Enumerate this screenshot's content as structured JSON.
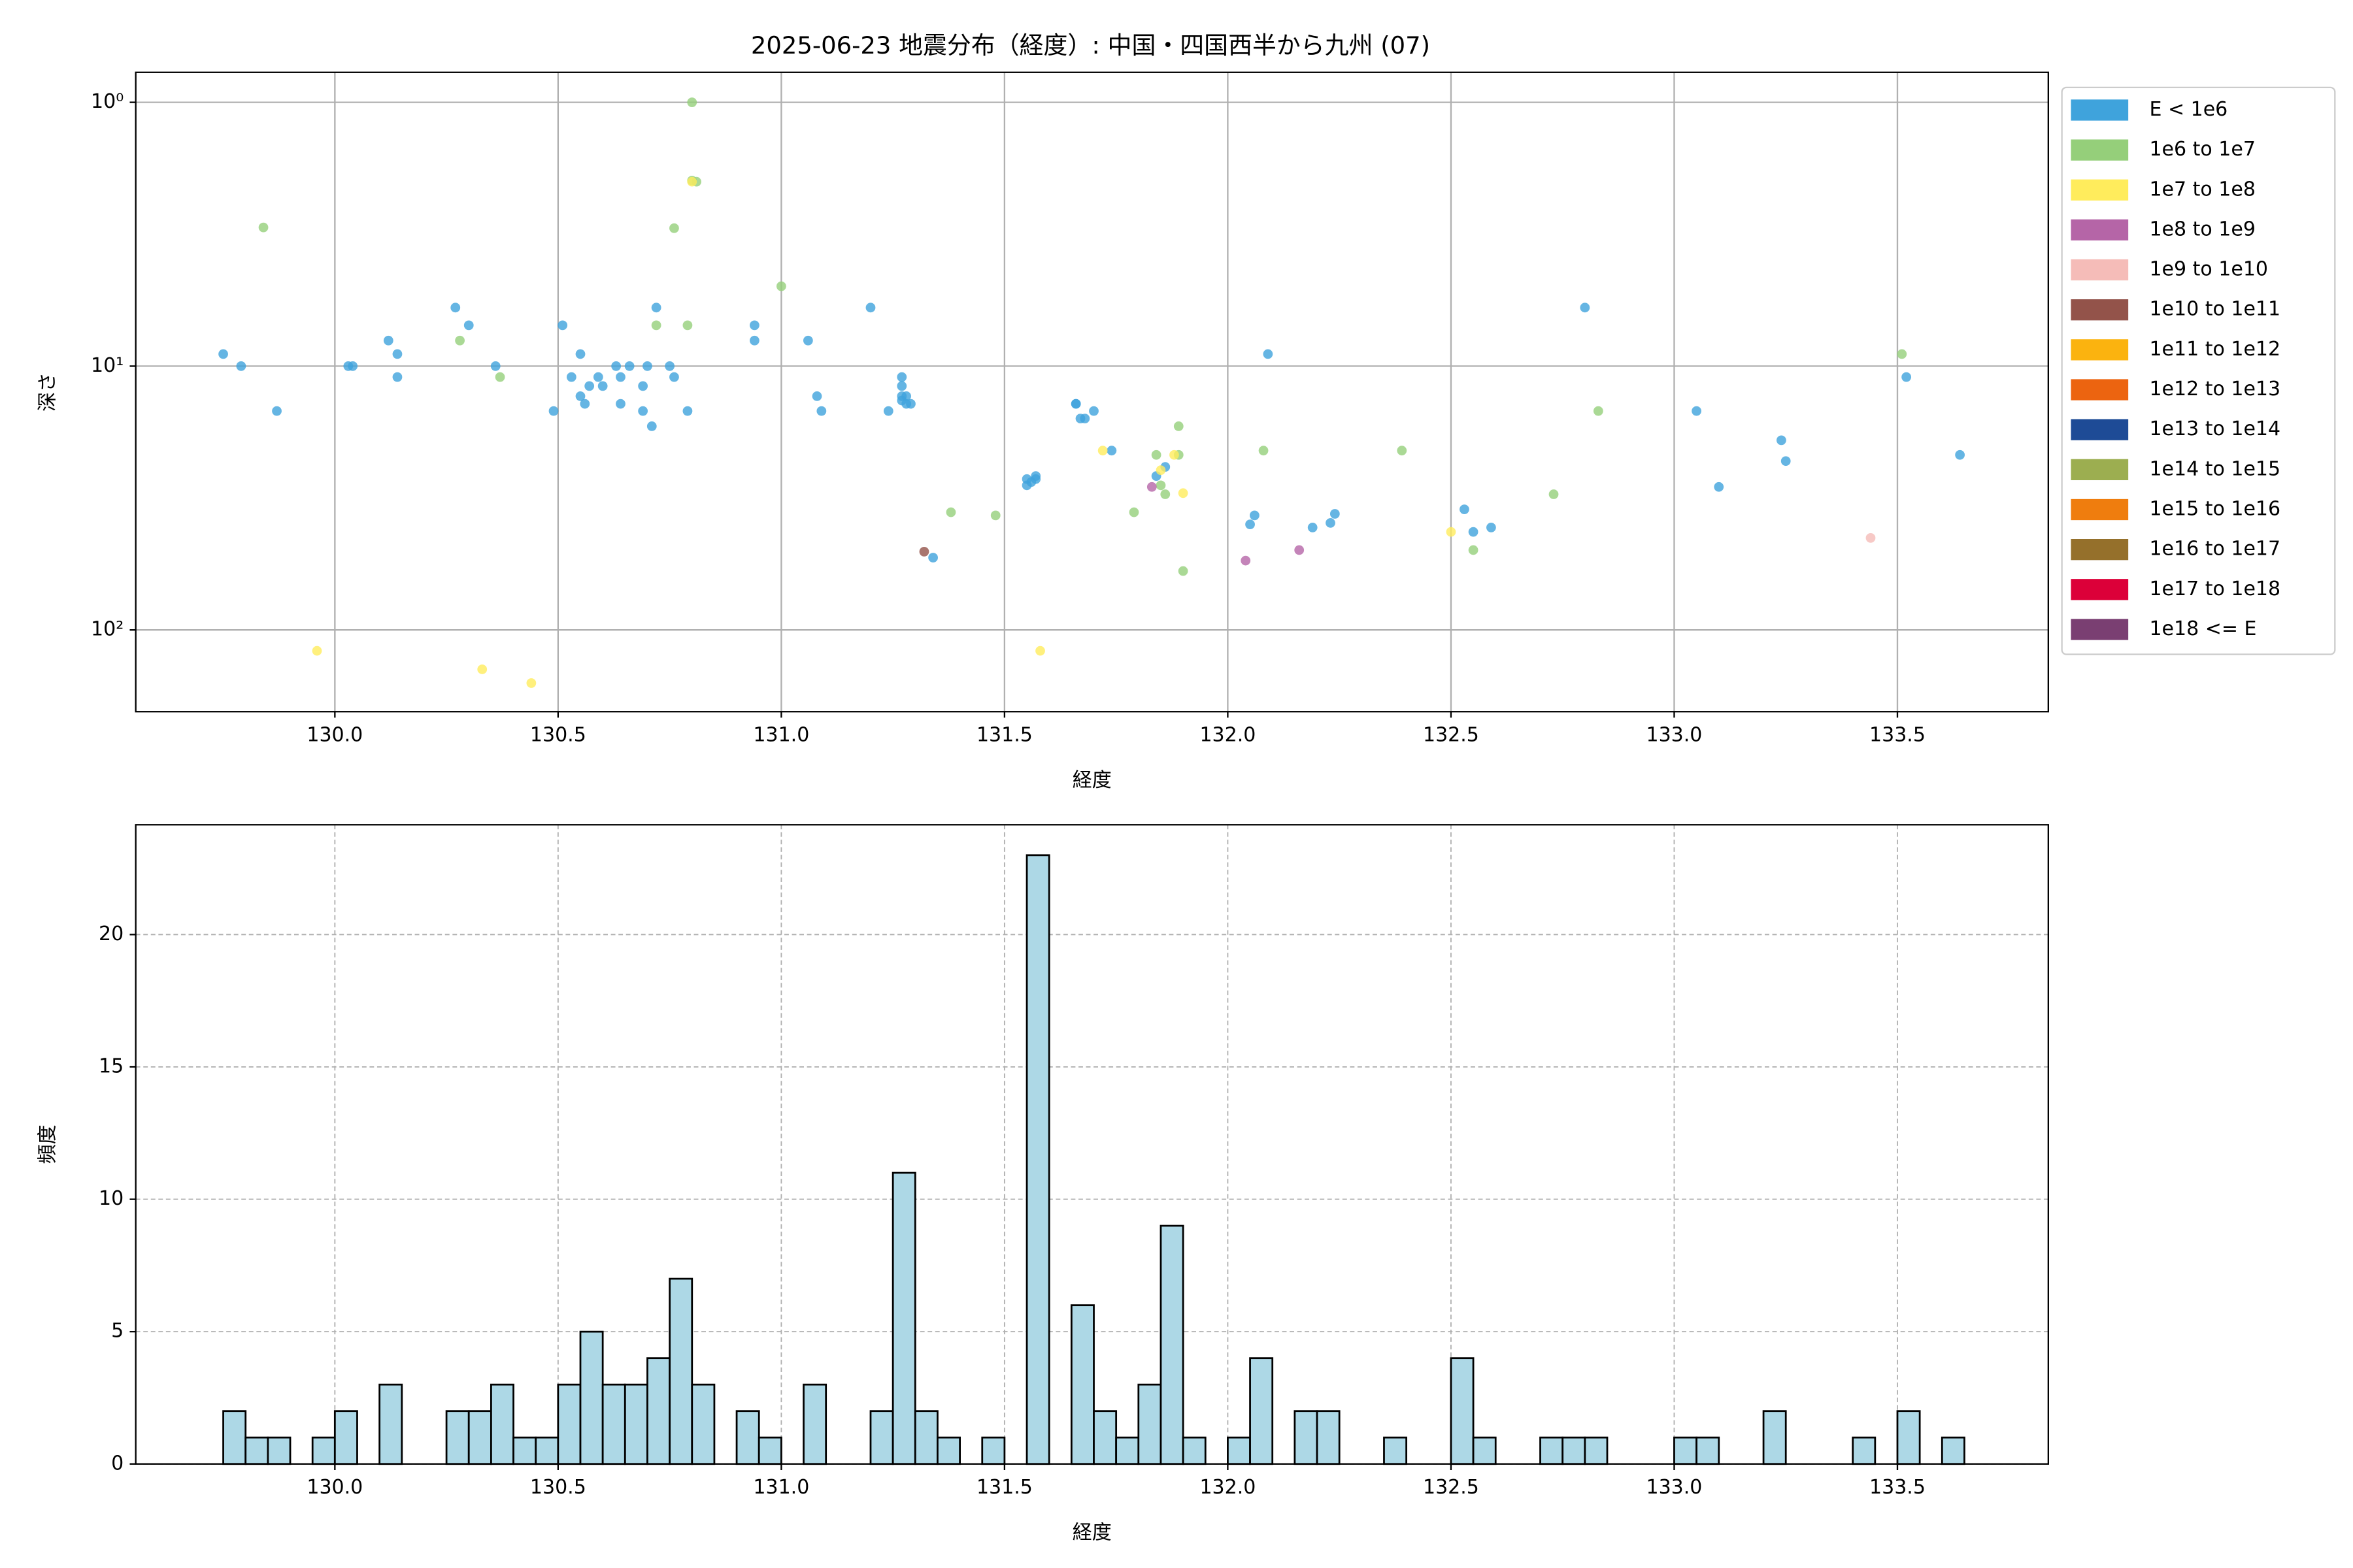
{
  "chart_data": [
    {
      "type": "scatter",
      "title": "2025-06-23 地震分布（経度）: 中国・四国西半から九州 (07)",
      "xlabel": "経度",
      "ylabel": "深さ",
      "xlim": [
        129.554,
        133.838
      ],
      "xticks": [
        {
          "value": 130,
          "label": "130.0"
        },
        {
          "value": 130.5,
          "label": "130.5"
        },
        {
          "value": 131,
          "label": "131.0"
        },
        {
          "value": 131.5,
          "label": "131.5"
        },
        {
          "value": 132,
          "label": "132.0"
        },
        {
          "value": 132.5,
          "label": "132.5"
        },
        {
          "value": 133,
          "label": "133.0"
        },
        {
          "value": 133.5,
          "label": "133.5"
        }
      ],
      "ylim": [
        0.77,
        204
      ],
      "y_log": true,
      "y_inverted": true,
      "yticks": [
        {
          "value": 1,
          "label": "10⁰"
        },
        {
          "value": 10,
          "label": "10¹"
        },
        {
          "value": 100,
          "label": "10²"
        }
      ],
      "grid": true,
      "legend": "outside upper right",
      "series": [
        {
          "name": "E < 1e6",
          "color": "#3fa3dc",
          "x": [
            129.75,
            129.79,
            129.87,
            130.03,
            130.04,
            130.12,
            130.14,
            130.14,
            130.27,
            130.3,
            130.36,
            130.49,
            130.51,
            130.53,
            130.55,
            130.55,
            130.56,
            130.57,
            130.59,
            130.6,
            130.63,
            130.64,
            130.64,
            130.66,
            130.69,
            130.69,
            130.7,
            130.71,
            130.72,
            130.75,
            130.76,
            130.79,
            130.94,
            130.94,
            131.06,
            131.08,
            131.09,
            131.2,
            131.24,
            131.27,
            131.27,
            131.27,
            131.27,
            131.28,
            131.28,
            131.29,
            131.34,
            131.55,
            131.56,
            131.57,
            131.57,
            131.55,
            131.66,
            131.66,
            131.67,
            131.68,
            131.7,
            131.74,
            131.84,
            131.86,
            132.05,
            132.06,
            132.09,
            132.19,
            132.23,
            132.24,
            132.53,
            132.55,
            132.59,
            132.8,
            133.05,
            133.1,
            133.24,
            133.25,
            133.52,
            133.64
          ],
          "values": [
            9,
            10,
            14.8,
            10,
            10,
            8,
            9,
            11,
            6,
            7,
            10,
            14.8,
            7,
            11,
            9,
            13,
            13.9,
            11.9,
            11,
            11.9,
            10,
            11,
            13.9,
            10,
            11.9,
            14.8,
            10,
            16.9,
            6,
            10,
            11,
            14.8,
            7,
            8,
            8,
            13,
            14.8,
            6,
            14.8,
            11,
            13,
            11.9,
            13.5,
            13,
            13.9,
            13.9,
            53.2,
            28.3,
            27.5,
            26.8,
            26.1,
            26.8,
            13.9,
            13.9,
            15.8,
            15.8,
            14.8,
            20.9,
            26.1,
            24.1,
            39.8,
            36.8,
            9,
            40.9,
            39.3,
            36.3,
            34.9,
            42.5,
            40.9,
            6,
            14.8,
            28.7,
            19.1,
            22.9,
            11,
            21.7
          ]
        },
        {
          "name": "1e6 to 1e7",
          "color": "#95cf7a",
          "x": [
            129.84,
            130.28,
            130.37,
            130.72,
            130.76,
            130.79,
            130.8,
            130.8,
            130.81,
            131,
            131.38,
            131.48,
            131.79,
            131.84,
            131.85,
            131.86,
            131.89,
            131.89,
            131.9,
            132.08,
            132.39,
            132.55,
            132.73,
            132.83,
            133.51
          ],
          "values": [
            2.98,
            8,
            11,
            7,
            3,
            7,
            1,
            1.98,
            2,
            4.98,
            35.8,
            36.8,
            35.8,
            21.7,
            28.3,
            30.6,
            16.9,
            21.7,
            59.8,
            20.9,
            20.9,
            49.8,
            30.6,
            14.8,
            9
          ]
        },
        {
          "name": "1e7 to 1e8",
          "color": "#ffec5c",
          "x": [
            129.96,
            130.33,
            130.44,
            130.8,
            131.58,
            131.72,
            131.85,
            131.88,
            131.9,
            132.5
          ],
          "values": [
            120,
            141,
            159,
            2,
            120,
            20.9,
            24.8,
            21.7,
            30.3,
            42.5
          ]
        },
        {
          "name": "1e8 to 1e9",
          "color": "#b565a7",
          "x": [
            131.83,
            132.04,
            132.16
          ],
          "values": [
            28.7,
            54.6,
            49.8
          ]
        },
        {
          "name": "1e9 to 1e10",
          "color": "#f5bcb8",
          "x": [
            133.44
          ],
          "values": [
            44.8
          ]
        },
        {
          "name": "1e10 to 1e11",
          "color": "#93534a",
          "x": [
            131.32
          ],
          "values": [
            50.5
          ]
        },
        {
          "name": "1e11 to 1e12",
          "color": "#fbb30f",
          "x": [],
          "values": []
        },
        {
          "name": "1e12 to 1e13",
          "color": "#ec6410",
          "x": [],
          "values": []
        },
        {
          "name": "1e13 to 1e14",
          "color": "#1e4b96",
          "x": [],
          "values": []
        },
        {
          "name": "1e14 to 1e15",
          "color": "#9cae50",
          "x": [],
          "values": []
        },
        {
          "name": "1e15 to 1e16",
          "color": "#ef7d0e",
          "x": [],
          "values": []
        },
        {
          "name": "1e16 to 1e17",
          "color": "#95702b",
          "x": [],
          "values": []
        },
        {
          "name": "1e17 to 1e18",
          "color": "#dc0039",
          "x": [],
          "values": []
        },
        {
          "name": "1e18 <= E",
          "color": "#7a3f72",
          "x": [],
          "values": []
        }
      ]
    },
    {
      "type": "histogram",
      "xlabel": "経度",
      "ylabel": "頻度",
      "xlim": [
        129.554,
        133.838
      ],
      "xticks": [
        {
          "value": 130,
          "label": "130.0"
        },
        {
          "value": 130.5,
          "label": "130.5"
        },
        {
          "value": 131,
          "label": "131.0"
        },
        {
          "value": 131.5,
          "label": "131.5"
        },
        {
          "value": 132,
          "label": "132.0"
        },
        {
          "value": 132.5,
          "label": "132.5"
        },
        {
          "value": 133,
          "label": "133.0"
        },
        {
          "value": 133.5,
          "label": "133.5"
        }
      ],
      "ylim": [
        0,
        24.15
      ],
      "yticks": [
        0,
        5,
        10,
        15,
        20
      ],
      "grid": true,
      "grid_style": "dashed",
      "color": "#add8e6",
      "edgecolor": "#000000",
      "bins": [
        129.75,
        129.8,
        129.85,
        129.9,
        129.95,
        130,
        130.05,
        130.1,
        130.15,
        130.2,
        130.25,
        130.3,
        130.35,
        130.4,
        130.45,
        130.5,
        130.55,
        130.6,
        130.65,
        130.7,
        130.75,
        130.8,
        130.85,
        130.9,
        130.95,
        131,
        131.05,
        131.1,
        131.15,
        131.2,
        131.25,
        131.3,
        131.35,
        131.4,
        131.45,
        131.5,
        131.55,
        131.6,
        131.65,
        131.7,
        131.75,
        131.8,
        131.85,
        131.9,
        131.95,
        132,
        132.05,
        132.1,
        132.15,
        132.2,
        132.25,
        132.3,
        132.35,
        132.4,
        132.45,
        132.5,
        132.55,
        132.6,
        132.65,
        132.7,
        132.75,
        132.8,
        132.85,
        132.9,
        132.95,
        133,
        133.05,
        133.1,
        133.15,
        133.2,
        133.25,
        133.3,
        133.35,
        133.4,
        133.45,
        133.5,
        133.55,
        133.6,
        133.65
      ],
      "values": [
        2,
        1,
        1,
        0,
        1,
        2,
        0,
        3,
        0,
        0,
        2,
        2,
        3,
        1,
        1,
        3,
        5,
        3,
        3,
        4,
        7,
        3,
        0,
        2,
        1,
        0,
        3,
        0,
        0,
        2,
        11,
        2,
        1,
        0,
        1,
        0,
        23,
        0,
        6,
        2,
        1,
        3,
        9,
        1,
        0,
        1,
        4,
        0,
        2,
        2,
        0,
        0,
        1,
        0,
        0,
        4,
        1,
        0,
        0,
        1,
        1,
        1,
        0,
        0,
        0,
        1,
        1,
        0,
        0,
        2,
        0,
        0,
        0,
        1,
        0,
        2,
        0,
        1
      ]
    }
  ]
}
